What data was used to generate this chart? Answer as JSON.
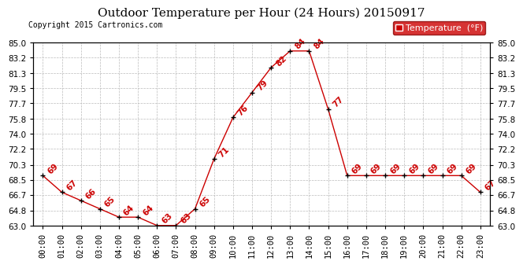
{
  "title": "Outdoor Temperature per Hour (24 Hours) 20150917",
  "copyright": "Copyright 2015 Cartronics.com",
  "legend_label": "Temperature  (°F)",
  "hours": [
    "00:00",
    "01:00",
    "02:00",
    "03:00",
    "04:00",
    "05:00",
    "06:00",
    "07:00",
    "08:00",
    "09:00",
    "10:00",
    "11:00",
    "12:00",
    "13:00",
    "14:00",
    "15:00",
    "16:00",
    "17:00",
    "18:00",
    "19:00",
    "20:00",
    "21:00",
    "22:00",
    "23:00"
  ],
  "temperatures": [
    69,
    67,
    66,
    65,
    64,
    64,
    63,
    63,
    65,
    71,
    76,
    79,
    82,
    84,
    84,
    77,
    69,
    69,
    69,
    69,
    69,
    69,
    69,
    67
  ],
  "line_color": "#cc0000",
  "marker_color": "#000000",
  "label_color": "#cc0000",
  "background_color": "#ffffff",
  "grid_color": "#bbbbbb",
  "ylim": [
    63.0,
    85.0
  ],
  "yticks": [
    63.0,
    64.8,
    66.7,
    68.5,
    70.3,
    72.2,
    74.0,
    75.8,
    77.7,
    79.5,
    81.3,
    83.2,
    85.0
  ],
  "title_fontsize": 11,
  "copyright_fontsize": 7,
  "legend_fontsize": 8,
  "tick_fontsize": 7.5,
  "label_fontsize": 7.5
}
